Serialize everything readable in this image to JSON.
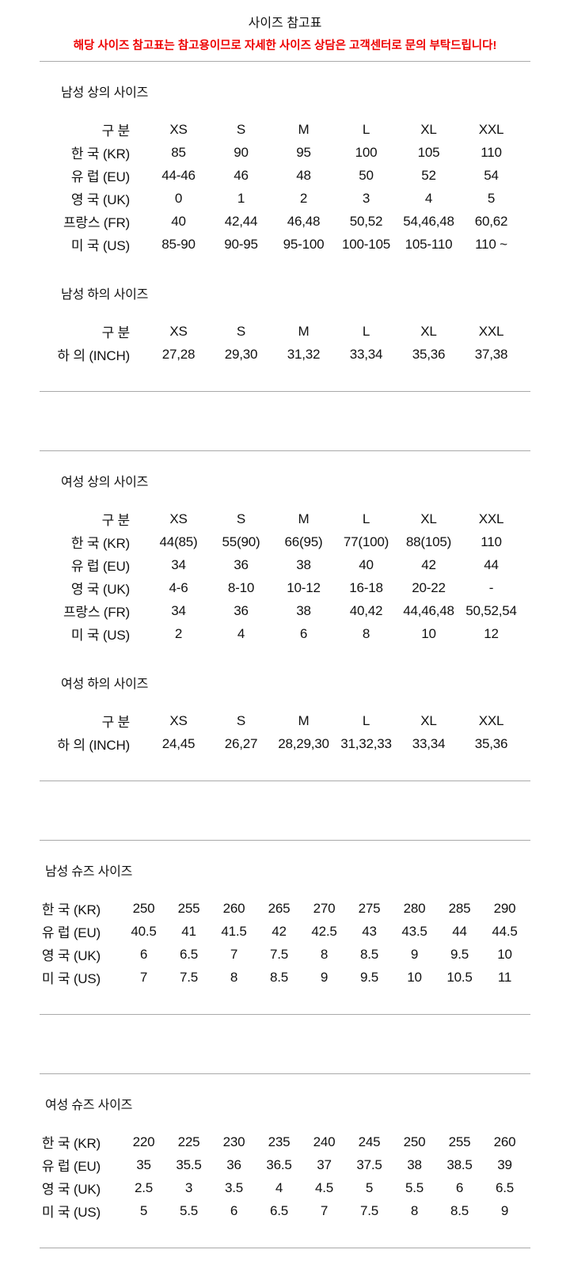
{
  "page": {
    "title": "사이즈 참고표",
    "notice": "해당 사이즈 참고표는 참고용이므로 자세한 사이즈 상담은 고객센터로 문의 부탁드립니다!"
  },
  "colors": {
    "text": "#111111",
    "notice": "#ee0000",
    "divider": "#a9a9a9"
  },
  "groups": [
    {
      "sections": [
        {
          "title": "남성 상의 사이즈",
          "layout": "clothing",
          "header": [
            "구 분",
            "XS",
            "S",
            "M",
            "L",
            "XL",
            "XXL"
          ],
          "rows": [
            {
              "label": "한 국 (KR)",
              "values": [
                "85",
                "90",
                "95",
                "100",
                "105",
                "110"
              ]
            },
            {
              "label": "유 럽 (EU)",
              "values": [
                "44-46",
                "46",
                "48",
                "50",
                "52",
                "54"
              ]
            },
            {
              "label": "영 국 (UK)",
              "values": [
                "0",
                "1",
                "2",
                "3",
                "4",
                "5"
              ]
            },
            {
              "label": "프랑스 (FR)",
              "values": [
                "40",
                "42,44",
                "46,48",
                "50,52",
                "54,46,48",
                "60,62"
              ]
            },
            {
              "label": "미 국 (US)",
              "values": [
                "85-90",
                "90-95",
                "95-100",
                "100-105",
                "105-110",
                "110 ~"
              ]
            }
          ]
        },
        {
          "title": "남성 하의 사이즈",
          "layout": "clothing",
          "header": [
            "구 분",
            "XS",
            "S",
            "M",
            "L",
            "XL",
            "XXL"
          ],
          "rows": [
            {
              "label": "하 의 (INCH)",
              "values": [
                "27,28",
                "29,30",
                "31,32",
                "33,34",
                "35,36",
                "37,38"
              ]
            }
          ]
        }
      ]
    },
    {
      "sections": [
        {
          "title": "여성 상의 사이즈",
          "layout": "clothing",
          "header": [
            "구 분",
            "XS",
            "S",
            "M",
            "L",
            "XL",
            "XXL"
          ],
          "rows": [
            {
              "label": "한 국 (KR)",
              "values": [
                "44(85)",
                "55(90)",
                "66(95)",
                "77(100)",
                "88(105)",
                "110"
              ]
            },
            {
              "label": "유 럽 (EU)",
              "values": [
                "34",
                "36",
                "38",
                "40",
                "42",
                "44"
              ]
            },
            {
              "label": "영 국 (UK)",
              "values": [
                "4-6",
                "8-10",
                "10-12",
                "16-18",
                "20-22",
                "-"
              ]
            },
            {
              "label": "프랑스 (FR)",
              "values": [
                "34",
                "36",
                "38",
                "40,42",
                "44,46,48",
                "50,52,54"
              ]
            },
            {
              "label": "미 국 (US)",
              "values": [
                "2",
                "4",
                "6",
                "8",
                "10",
                "12"
              ]
            }
          ]
        },
        {
          "title": "여성 하의 사이즈",
          "layout": "clothing",
          "header": [
            "구 분",
            "XS",
            "S",
            "M",
            "L",
            "XL",
            "XXL"
          ],
          "rows": [
            {
              "label": "하 의 (INCH)",
              "values": [
                "24,45",
                "26,27",
                "28,29,30",
                "31,32,33",
                "33,34",
                "35,36"
              ]
            }
          ]
        }
      ]
    },
    {
      "sections": [
        {
          "title": "남성 슈즈 사이즈",
          "layout": "shoes",
          "rows": [
            {
              "label": "한 국 (KR)",
              "values": [
                "250",
                "255",
                "260",
                "265",
                "270",
                "275",
                "280",
                "285",
                "290"
              ]
            },
            {
              "label": "유 럽 (EU)",
              "values": [
                "40.5",
                "41",
                "41.5",
                "42",
                "42.5",
                "43",
                "43.5",
                "44",
                "44.5"
              ]
            },
            {
              "label": "영 국 (UK)",
              "values": [
                "6",
                "6.5",
                "7",
                "7.5",
                "8",
                "8.5",
                "9",
                "9.5",
                "10"
              ]
            },
            {
              "label": "미 국 (US)",
              "values": [
                "7",
                "7.5",
                "8",
                "8.5",
                "9",
                "9.5",
                "10",
                "10.5",
                "11"
              ]
            }
          ]
        }
      ]
    },
    {
      "sections": [
        {
          "title": "여성 슈즈 사이즈",
          "layout": "shoes",
          "rows": [
            {
              "label": "한 국 (KR)",
              "values": [
                "220",
                "225",
                "230",
                "235",
                "240",
                "245",
                "250",
                "255",
                "260"
              ]
            },
            {
              "label": "유 럽 (EU)",
              "values": [
                "35",
                "35.5",
                "36",
                "36.5",
                "37",
                "37.5",
                "38",
                "38.5",
                "39"
              ]
            },
            {
              "label": "영 국 (UK)",
              "values": [
                "2.5",
                "3",
                "3.5",
                "4",
                "4.5",
                "5",
                "5.5",
                "6",
                "6.5"
              ]
            },
            {
              "label": "미 국 (US)",
              "values": [
                "5",
                "5.5",
                "6",
                "6.5",
                "7",
                "7.5",
                "8",
                "8.5",
                "9"
              ]
            }
          ]
        }
      ]
    }
  ]
}
